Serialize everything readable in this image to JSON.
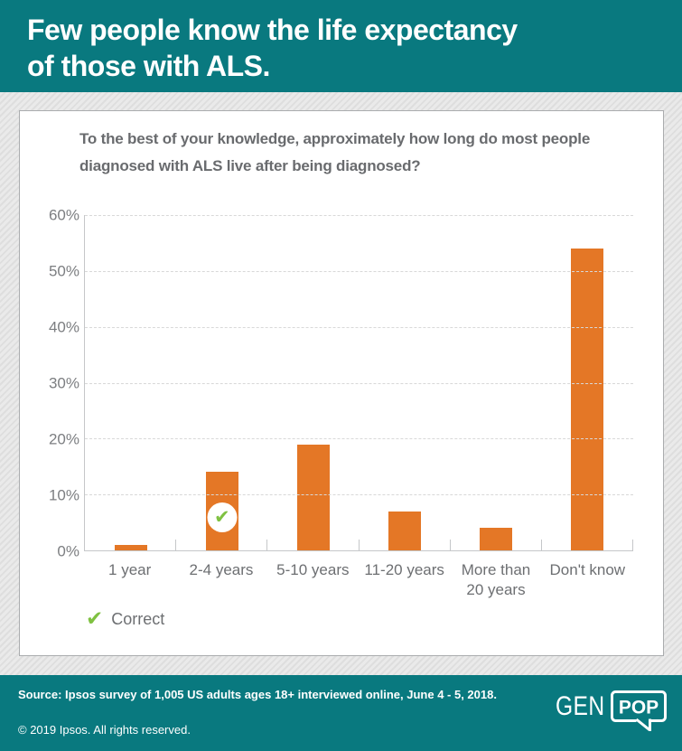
{
  "header": {
    "title": "Few people know the life expectancy\nof those with ALS."
  },
  "chart_data": {
    "type": "bar",
    "title": "To the best of your knowledge, approximately how long do most people\ndiagnosed with ALS live after being diagnosed?",
    "categories": [
      "1 year",
      "2-4 years",
      "5-10 years",
      "11-20 years",
      "More than\n20 years",
      "Don't know"
    ],
    "values": [
      1,
      14,
      19,
      7,
      4,
      54
    ],
    "correct_index": 1,
    "ylabel": "",
    "xlabel": "",
    "ylim": [
      0,
      60
    ],
    "ytick_step": 10,
    "ytick_suffix": "%",
    "grid": "horizontal-dashed",
    "legend_position": "bottom-left",
    "legend": {
      "label": "Correct",
      "icon": "check",
      "icon_glyph": "✔"
    },
    "bar_color": "#e47726",
    "correct_color": "#7fc141"
  },
  "footer": {
    "source": "Source: Ipsos survey of 1,005 US adults ages 18+ interviewed online, June 4 - 5, 2018.",
    "copyright": "© 2019 Ipsos. All rights reserved.",
    "logo": {
      "gen": "GEN",
      "pop": "POP"
    }
  },
  "colors": {
    "teal": "#09797f",
    "orange": "#e47726",
    "green": "#7fc141",
    "question_text": "#696b6e",
    "axis_text": "#7c7e81"
  }
}
